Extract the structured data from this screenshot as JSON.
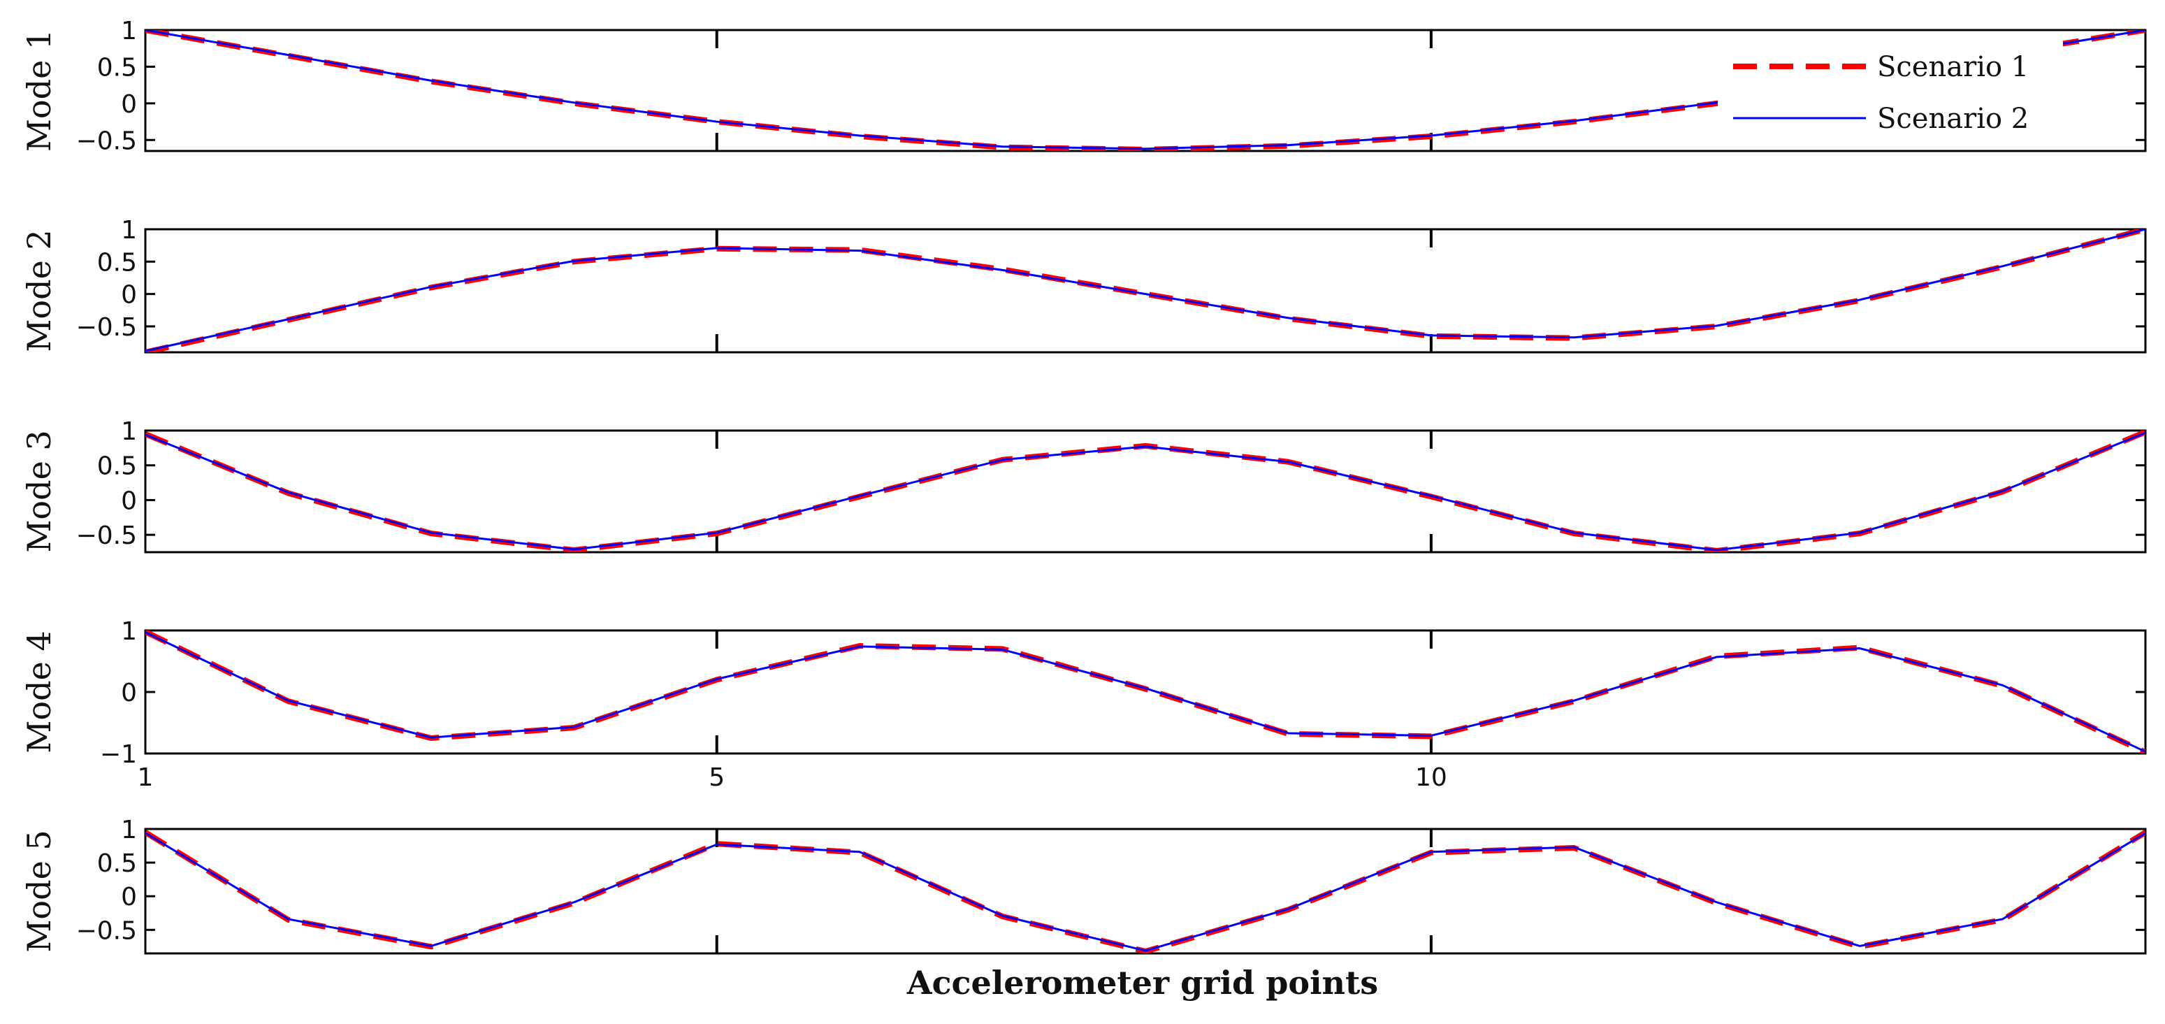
{
  "figure": {
    "xlabel": "Accelerometer grid points"
  },
  "legend": {
    "items": [
      {
        "label": "Scenario 1",
        "color": "#ff0000",
        "style": "dashed"
      },
      {
        "label": "Scenario 2",
        "color": "#0000ff",
        "style": "solid"
      }
    ]
  },
  "chart_data": [
    {
      "type": "line",
      "ylabel": "Mode 1",
      "x": [
        1,
        2,
        3,
        4,
        5,
        6,
        7,
        8,
        9,
        10,
        11,
        12,
        13,
        14,
        15
      ],
      "ylim": [
        -0.65,
        1
      ],
      "yticks": [
        "1",
        "0.5",
        "0",
        "−0.5"
      ],
      "ytick_values": [
        1,
        0.5,
        0,
        -0.5
      ],
      "xtick_labels_shown": false,
      "legend": "top-right",
      "series": [
        {
          "name": "Scenario 1",
          "values": [
            1.0,
            0.65,
            0.3,
            0.0,
            -0.25,
            -0.45,
            -0.6,
            -0.63,
            -0.58,
            -0.45,
            -0.25,
            0.0,
            0.3,
            0.68,
            1.0
          ]
        },
        {
          "name": "Scenario 2",
          "values": [
            1.0,
            0.66,
            0.31,
            0.01,
            -0.25,
            -0.44,
            -0.59,
            -0.62,
            -0.57,
            -0.44,
            -0.24,
            0.01,
            0.31,
            0.68,
            1.0
          ]
        }
      ]
    },
    {
      "type": "line",
      "ylabel": "Mode 2",
      "x": [
        1,
        2,
        3,
        4,
        5,
        6,
        7,
        8,
        9,
        10,
        11,
        12,
        13,
        14,
        15
      ],
      "ylim": [
        -0.9,
        1
      ],
      "yticks": [
        "1",
        "0.5",
        "0",
        "−0.5"
      ],
      "ytick_values": [
        1,
        0.5,
        0,
        -0.5
      ],
      "xtick_labels_shown": false,
      "series": [
        {
          "name": "Scenario 1",
          "values": [
            -0.9,
            -0.4,
            0.1,
            0.5,
            0.7,
            0.68,
            0.38,
            0.0,
            -0.38,
            -0.65,
            -0.68,
            -0.5,
            -0.1,
            0.42,
            1.0
          ]
        },
        {
          "name": "Scenario 2",
          "values": [
            -0.88,
            -0.39,
            0.11,
            0.51,
            0.71,
            0.67,
            0.37,
            0.0,
            -0.37,
            -0.64,
            -0.67,
            -0.49,
            -0.09,
            0.43,
            1.0
          ]
        }
      ]
    },
    {
      "type": "line",
      "ylabel": "Mode 3",
      "x": [
        1,
        2,
        3,
        4,
        5,
        6,
        7,
        8,
        9,
        10,
        11,
        12,
        13,
        14,
        15
      ],
      "ylim": [
        -0.75,
        1
      ],
      "yticks": [
        "1",
        "0.5",
        "0",
        "−0.5"
      ],
      "ytick_values": [
        1,
        0.5,
        0,
        -0.5
      ],
      "xtick_labels_shown": false,
      "series": [
        {
          "name": "Scenario 1",
          "values": [
            0.95,
            0.1,
            -0.48,
            -0.72,
            -0.48,
            0.05,
            0.58,
            0.78,
            0.55,
            0.05,
            -0.48,
            -0.73,
            -0.48,
            0.12,
            0.98
          ]
        },
        {
          "name": "Scenario 2",
          "values": [
            0.94,
            0.11,
            -0.47,
            -0.71,
            -0.47,
            0.06,
            0.58,
            0.77,
            0.55,
            0.06,
            -0.47,
            -0.72,
            -0.47,
            0.13,
            0.97
          ]
        }
      ]
    },
    {
      "type": "line",
      "ylabel": "Mode 4",
      "x": [
        1,
        2,
        3,
        4,
        5,
        6,
        7,
        8,
        9,
        10,
        11,
        12,
        13,
        14,
        15
      ],
      "ylim": [
        -1,
        1
      ],
      "yticks": [
        "1",
        "0",
        "−1"
      ],
      "ytick_values": [
        1,
        0,
        -1
      ],
      "xticks": [
        "1",
        "5",
        "10"
      ],
      "xtick_values": [
        1,
        5,
        10
      ],
      "xtick_labels_shown": true,
      "series": [
        {
          "name": "Scenario 1",
          "values": [
            0.98,
            -0.15,
            -0.75,
            -0.58,
            0.2,
            0.75,
            0.7,
            0.05,
            -0.68,
            -0.72,
            -0.15,
            0.58,
            0.72,
            0.1,
            -0.98
          ]
        },
        {
          "name": "Scenario 2",
          "values": [
            0.97,
            -0.14,
            -0.74,
            -0.57,
            0.21,
            0.74,
            0.69,
            0.06,
            -0.67,
            -0.71,
            -0.14,
            0.57,
            0.71,
            0.11,
            -0.97
          ]
        }
      ]
    },
    {
      "type": "line",
      "ylabel": "Mode 5",
      "x": [
        1,
        2,
        3,
        4,
        5,
        6,
        7,
        8,
        9,
        10,
        11,
        12,
        13,
        14,
        15
      ],
      "ylim": [
        -0.85,
        1
      ],
      "yticks": [
        "1",
        "0.5",
        "0",
        "−0.5"
      ],
      "ytick_values": [
        1,
        0.5,
        0,
        -0.5
      ],
      "xtick_labels_shown": false,
      "series": [
        {
          "name": "Scenario 1",
          "values": [
            0.95,
            -0.35,
            -0.75,
            -0.1,
            0.78,
            0.65,
            -0.3,
            -0.82,
            -0.2,
            0.65,
            0.72,
            -0.1,
            -0.75,
            -0.35,
            0.95
          ]
        },
        {
          "name": "Scenario 2",
          "values": [
            0.94,
            -0.34,
            -0.74,
            -0.09,
            0.77,
            0.66,
            -0.29,
            -0.81,
            -0.19,
            0.66,
            0.73,
            -0.09,
            -0.74,
            -0.34,
            0.94
          ]
        }
      ]
    }
  ]
}
